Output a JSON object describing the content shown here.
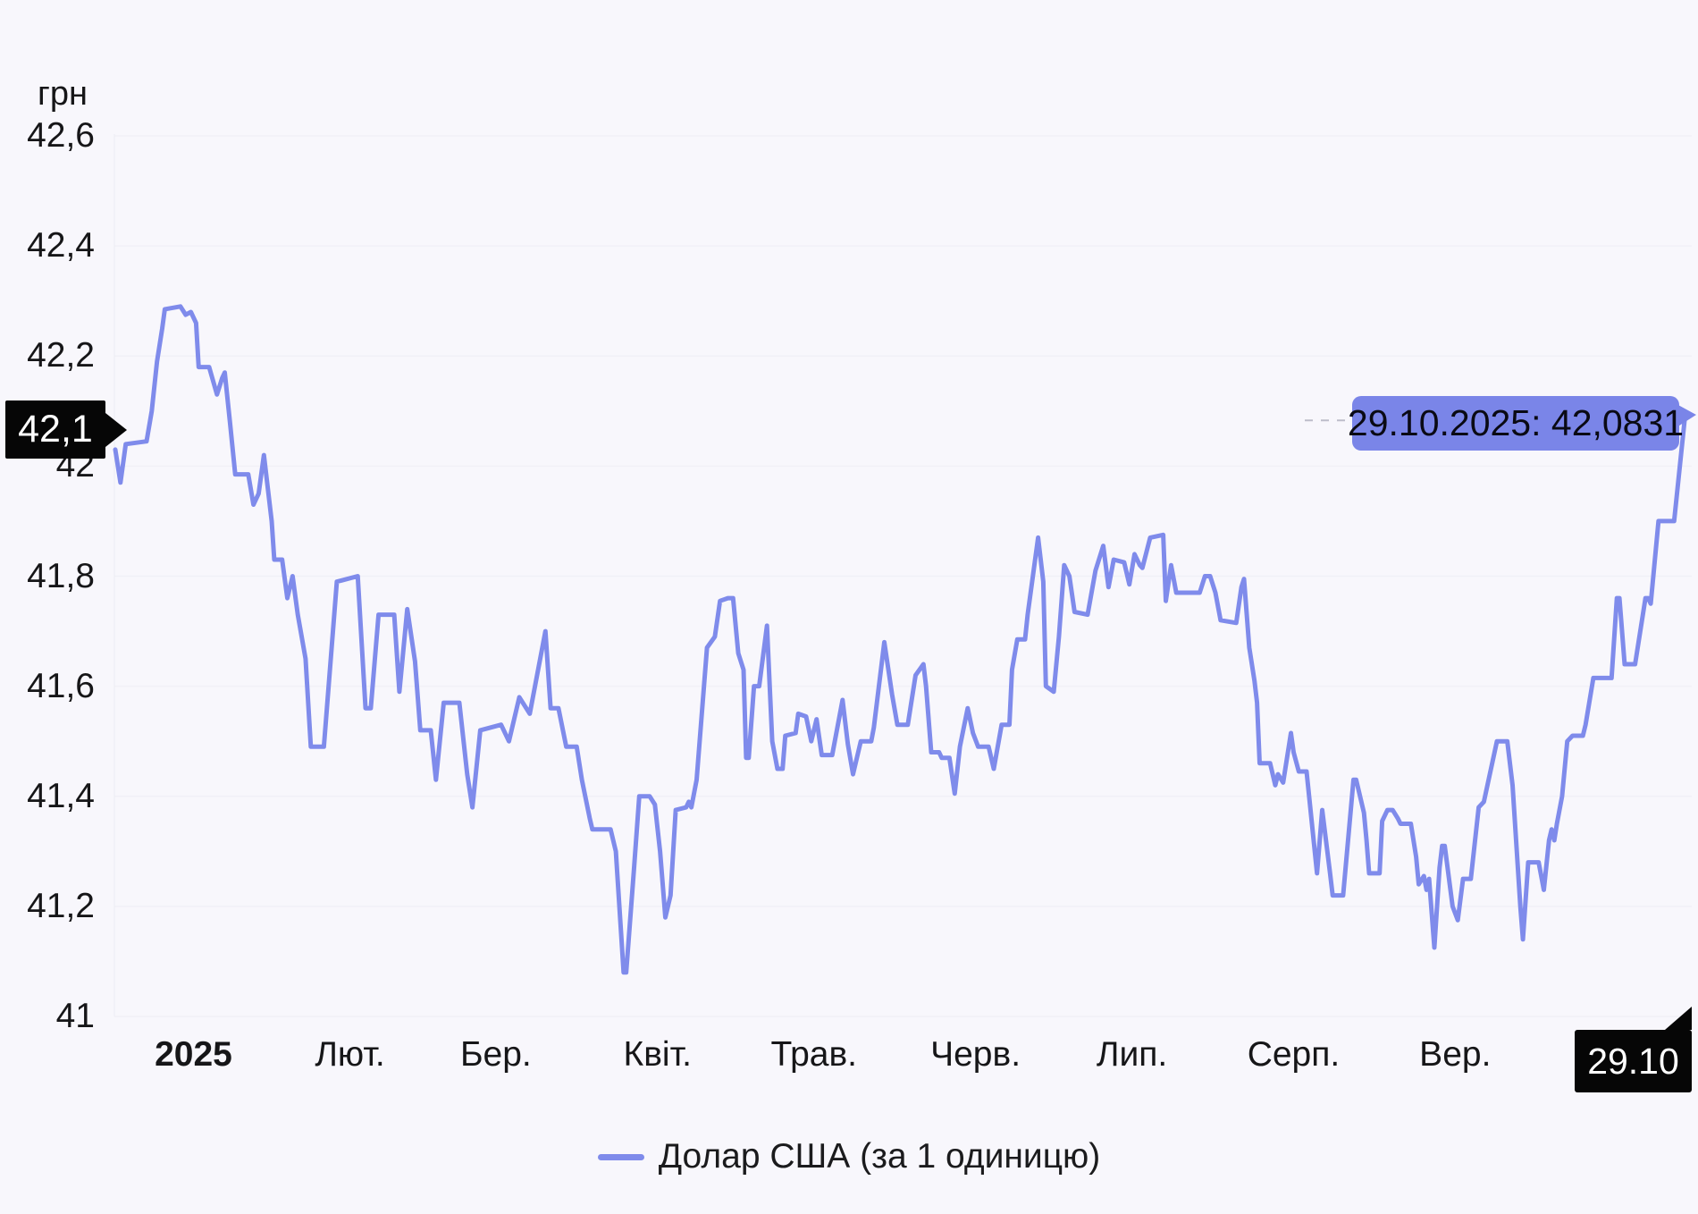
{
  "unit_label": "грн",
  "colors": {
    "background": "#f8f7fc",
    "line": "#7f8beb",
    "tooltip_bg": "#7a85e8",
    "badge_bg": "#060606",
    "badge_text": "#ffffff",
    "grid": "#ececf3",
    "crosshair_dash": "#bdbdca",
    "axis_text": "#161618"
  },
  "value_badge": {
    "text": "42,1"
  },
  "date_badge": {
    "text": "29.10"
  },
  "tooltip": {
    "text": "29.10.2025: 42,0831"
  },
  "legend": {
    "label": "Долар США (за 1 одиницю)"
  },
  "chart_data": {
    "type": "line",
    "ylabel_unit": "грн",
    "ylim": [
      41,
      42.6
    ],
    "grid": "horizontal-faint",
    "legend_position": "bottom",
    "y_ticks": [
      {
        "label": "42,6",
        "value": 42.6
      },
      {
        "label": "42,4",
        "value": 42.4
      },
      {
        "label": "42,2",
        "value": 42.2
      },
      {
        "label": "42",
        "value": 42.0
      },
      {
        "label": "41,8",
        "value": 41.8
      },
      {
        "label": "41,6",
        "value": 41.6
      },
      {
        "label": "41,4",
        "value": 41.4
      },
      {
        "label": "41,2",
        "value": 41.2
      },
      {
        "label": "41",
        "value": 41.0
      }
    ],
    "x_ticks": [
      {
        "label": "2025",
        "day": 15,
        "bold": true
      },
      {
        "label": "Лют.",
        "day": 45,
        "bold": false
      },
      {
        "label": "Бер.",
        "day": 73,
        "bold": false
      },
      {
        "label": "Квіт.",
        "day": 104,
        "bold": false
      },
      {
        "label": "Трав.",
        "day": 134,
        "bold": false
      },
      {
        "label": "Черв.",
        "day": 165,
        "bold": false
      },
      {
        "label": "Лип.",
        "day": 195,
        "bold": false
      },
      {
        "label": "Серп.",
        "day": 226,
        "bold": false
      },
      {
        "label": "Вер.",
        "day": 257,
        "bold": false
      }
    ],
    "x_domain_days": [
      0,
      301
    ],
    "current_point": {
      "date": "29.10.2025",
      "value": 42.0831,
      "day": 301
    },
    "series": [
      {
        "name": "Долар США (за 1 одиницю)",
        "points": [
          [
            0,
            42.03
          ],
          [
            1,
            41.97
          ],
          [
            2,
            42.04
          ],
          [
            6,
            42.045
          ],
          [
            7,
            42.1
          ],
          [
            8,
            42.19
          ],
          [
            9,
            42.25
          ],
          [
            9.5,
            42.285
          ],
          [
            12.5,
            42.29
          ],
          [
            13.5,
            42.275
          ],
          [
            14.5,
            42.28
          ],
          [
            15.5,
            42.26
          ],
          [
            16,
            42.18
          ],
          [
            18,
            42.18
          ],
          [
            19.5,
            42.13
          ],
          [
            20.5,
            42.16
          ],
          [
            21,
            42.17
          ],
          [
            22,
            42.08
          ],
          [
            23,
            41.985
          ],
          [
            25.5,
            41.985
          ],
          [
            26.5,
            41.93
          ],
          [
            27.5,
            41.95
          ],
          [
            28.5,
            42.02
          ],
          [
            30,
            41.9
          ],
          [
            30.5,
            41.83
          ],
          [
            32,
            41.83
          ],
          [
            33,
            41.76
          ],
          [
            34,
            41.8
          ],
          [
            35,
            41.73
          ],
          [
            36.5,
            41.65
          ],
          [
            37.5,
            41.49
          ],
          [
            40,
            41.49
          ],
          [
            42.5,
            41.79
          ],
          [
            46.5,
            41.8
          ],
          [
            48,
            41.56
          ],
          [
            49,
            41.56
          ],
          [
            50.5,
            41.73
          ],
          [
            53.5,
            41.73
          ],
          [
            54.5,
            41.59
          ],
          [
            56,
            41.74
          ],
          [
            57.5,
            41.645
          ],
          [
            58.5,
            41.52
          ],
          [
            60.5,
            41.52
          ],
          [
            61.5,
            41.43
          ],
          [
            63,
            41.57
          ],
          [
            66,
            41.57
          ],
          [
            67.5,
            41.44
          ],
          [
            68.5,
            41.38
          ],
          [
            70,
            41.52
          ],
          [
            74,
            41.53
          ],
          [
            75.5,
            41.5
          ],
          [
            77.5,
            41.58
          ],
          [
            79.5,
            41.55
          ],
          [
            82.5,
            41.7
          ],
          [
            83.5,
            41.56
          ],
          [
            85,
            41.56
          ],
          [
            86.5,
            41.49
          ],
          [
            88.5,
            41.49
          ],
          [
            89.5,
            41.43
          ],
          [
            91,
            41.36
          ],
          [
            91.5,
            41.34
          ],
          [
            95,
            41.34
          ],
          [
            96,
            41.3
          ],
          [
            97.5,
            41.08
          ],
          [
            98,
            41.08
          ],
          [
            99.5,
            41.27
          ],
          [
            100.5,
            41.4
          ],
          [
            102.5,
            41.4
          ],
          [
            103.5,
            41.385
          ],
          [
            104.5,
            41.3
          ],
          [
            105.5,
            41.18
          ],
          [
            106.5,
            41.22
          ],
          [
            107.5,
            41.375
          ],
          [
            109.5,
            41.38
          ],
          [
            110,
            41.39
          ],
          [
            110.5,
            41.38
          ],
          [
            111.5,
            41.43
          ],
          [
            113.5,
            41.67
          ],
          [
            115,
            41.69
          ],
          [
            116,
            41.755
          ],
          [
            117.5,
            41.76
          ],
          [
            118.5,
            41.76
          ],
          [
            119.5,
            41.66
          ],
          [
            120.5,
            41.63
          ],
          [
            121,
            41.47
          ],
          [
            121.5,
            41.47
          ],
          [
            122.5,
            41.6
          ],
          [
            123.5,
            41.6
          ],
          [
            125,
            41.71
          ],
          [
            126,
            41.5
          ],
          [
            127,
            41.45
          ],
          [
            128,
            41.45
          ],
          [
            128.5,
            41.51
          ],
          [
            130.5,
            41.515
          ],
          [
            131,
            41.55
          ],
          [
            132.5,
            41.545
          ],
          [
            133.5,
            41.5
          ],
          [
            134.5,
            41.54
          ],
          [
            135.5,
            41.475
          ],
          [
            137.5,
            41.475
          ],
          [
            139.5,
            41.575
          ],
          [
            140.5,
            41.495
          ],
          [
            141.5,
            41.44
          ],
          [
            143,
            41.5
          ],
          [
            145,
            41.5
          ],
          [
            145.5,
            41.525
          ],
          [
            147.5,
            41.68
          ],
          [
            149,
            41.585
          ],
          [
            150,
            41.53
          ],
          [
            152,
            41.53
          ],
          [
            153.5,
            41.62
          ],
          [
            155,
            41.64
          ],
          [
            155.5,
            41.6
          ],
          [
            156.5,
            41.48
          ],
          [
            158,
            41.48
          ],
          [
            158.5,
            41.47
          ],
          [
            160,
            41.47
          ],
          [
            161,
            41.405
          ],
          [
            162,
            41.49
          ],
          [
            163.5,
            41.56
          ],
          [
            164.5,
            41.515
          ],
          [
            165.5,
            41.49
          ],
          [
            167.5,
            41.49
          ],
          [
            168.5,
            41.45
          ],
          [
            170,
            41.53
          ],
          [
            171.5,
            41.53
          ],
          [
            172,
            41.63
          ],
          [
            173,
            41.685
          ],
          [
            174.5,
            41.685
          ],
          [
            175,
            41.73
          ],
          [
            177,
            41.87
          ],
          [
            178,
            41.79
          ],
          [
            178.5,
            41.6
          ],
          [
            180,
            41.59
          ],
          [
            181,
            41.69
          ],
          [
            182,
            41.82
          ],
          [
            183,
            41.8
          ],
          [
            184,
            41.735
          ],
          [
            186.5,
            41.73
          ],
          [
            188,
            41.81
          ],
          [
            189.5,
            41.855
          ],
          [
            190.5,
            41.78
          ],
          [
            191.5,
            41.83
          ],
          [
            193.5,
            41.825
          ],
          [
            194.5,
            41.785
          ],
          [
            195.5,
            41.84
          ],
          [
            196.5,
            41.82
          ],
          [
            197,
            41.815
          ],
          [
            198.5,
            41.87
          ],
          [
            201,
            41.875
          ],
          [
            201.5,
            41.755
          ],
          [
            202.5,
            41.82
          ],
          [
            203.5,
            41.77
          ],
          [
            208,
            41.77
          ],
          [
            209,
            41.8
          ],
          [
            210,
            41.8
          ],
          [
            211,
            41.77
          ],
          [
            212,
            41.72
          ],
          [
            215,
            41.715
          ],
          [
            216,
            41.78
          ],
          [
            216.5,
            41.795
          ],
          [
            217.5,
            41.67
          ],
          [
            218.5,
            41.61
          ],
          [
            219,
            41.57
          ],
          [
            219.5,
            41.46
          ],
          [
            221.5,
            41.46
          ],
          [
            222.5,
            41.42
          ],
          [
            223,
            41.44
          ],
          [
            224,
            41.425
          ],
          [
            225.5,
            41.515
          ],
          [
            226,
            41.48
          ],
          [
            227,
            41.445
          ],
          [
            228.5,
            41.445
          ],
          [
            230.5,
            41.26
          ],
          [
            231.5,
            41.375
          ],
          [
            233,
            41.26
          ],
          [
            233.5,
            41.22
          ],
          [
            235.5,
            41.22
          ],
          [
            237.5,
            41.43
          ],
          [
            238,
            41.43
          ],
          [
            239.5,
            41.37
          ],
          [
            240,
            41.32
          ],
          [
            240.5,
            41.26
          ],
          [
            242.5,
            41.26
          ],
          [
            243,
            41.355
          ],
          [
            244,
            41.375
          ],
          [
            245,
            41.375
          ],
          [
            246,
            41.36
          ],
          [
            246.5,
            41.35
          ],
          [
            248.5,
            41.35
          ],
          [
            249.5,
            41.29
          ],
          [
            250,
            41.24
          ],
          [
            251,
            41.255
          ],
          [
            251.5,
            41.23
          ],
          [
            252,
            41.25
          ],
          [
            253,
            41.125
          ],
          [
            254,
            41.27
          ],
          [
            254.5,
            41.31
          ],
          [
            255,
            41.31
          ],
          [
            256.5,
            41.2
          ],
          [
            257.5,
            41.175
          ],
          [
            258.5,
            41.25
          ],
          [
            260,
            41.25
          ],
          [
            261.5,
            41.38
          ],
          [
            262.5,
            41.39
          ],
          [
            265,
            41.5
          ],
          [
            267,
            41.5
          ],
          [
            268,
            41.42
          ],
          [
            269.5,
            41.2
          ],
          [
            270,
            41.14
          ],
          [
            271,
            41.28
          ],
          [
            273,
            41.28
          ],
          [
            274,
            41.23
          ],
          [
            275,
            41.32
          ],
          [
            275.5,
            41.34
          ],
          [
            276,
            41.32
          ],
          [
            276.5,
            41.35
          ],
          [
            277.5,
            41.4
          ],
          [
            278.5,
            41.5
          ],
          [
            279.5,
            41.51
          ],
          [
            281.5,
            41.51
          ],
          [
            282,
            41.53
          ],
          [
            283.5,
            41.615
          ],
          [
            287,
            41.615
          ],
          [
            288,
            41.76
          ],
          [
            288.5,
            41.76
          ],
          [
            289.5,
            41.64
          ],
          [
            291.5,
            41.64
          ],
          [
            293,
            41.73
          ],
          [
            293.5,
            41.76
          ],
          [
            294,
            41.76
          ],
          [
            294.5,
            41.75
          ],
          [
            296,
            41.9
          ],
          [
            299,
            41.9
          ],
          [
            301,
            42.0831
          ]
        ]
      }
    ]
  }
}
